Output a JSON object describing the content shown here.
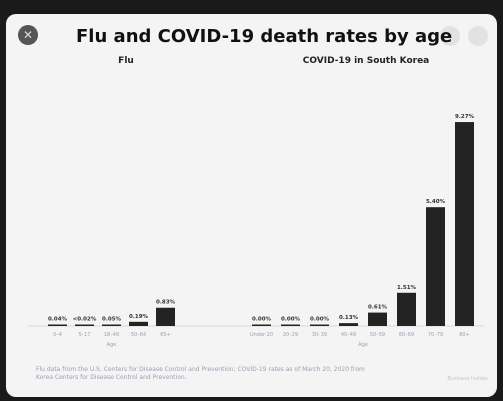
{
  "window": {
    "close_icon": "close-icon",
    "nav_icons": [
      "circle-icon",
      "circle-icon"
    ]
  },
  "chart_data": {
    "type": "bar",
    "title": "Flu and COVID-19 death rates by age",
    "xlabel": "Age",
    "ylim": [
      0,
      10
    ],
    "grid": false,
    "bar_color": "#232323",
    "panels": [
      {
        "name": "Flu",
        "categories": [
          "0–4",
          "5–17",
          "18–49",
          "50–64",
          "65+"
        ],
        "values": [
          0.04,
          0.02,
          0.05,
          0.19,
          0.83
        ],
        "labels": [
          "0.04%",
          "<0.02%",
          "0.05%",
          "0.19%",
          "0.83%"
        ]
      },
      {
        "name": "COVID-19 in South Korea",
        "categories": [
          "Under 20",
          "20–29",
          "30–39",
          "40–49",
          "50–59",
          "60–69",
          "70–79",
          "80+"
        ],
        "values": [
          0.0,
          0.0,
          0.0,
          0.13,
          0.61,
          1.51,
          5.4,
          9.27
        ],
        "labels": [
          "0.00%",
          "0.00%",
          "0.00%",
          "0.13%",
          "0.61%",
          "1.51%",
          "5.40%",
          "9.27%"
        ]
      }
    ],
    "footnote": "Flu data from the U.S. Centers for Disease Control and Prevention; COVID-19 rates as of March 20, 2020 from Korea Centers for Disease Control and Prevention.",
    "credit": "Business Insider"
  }
}
